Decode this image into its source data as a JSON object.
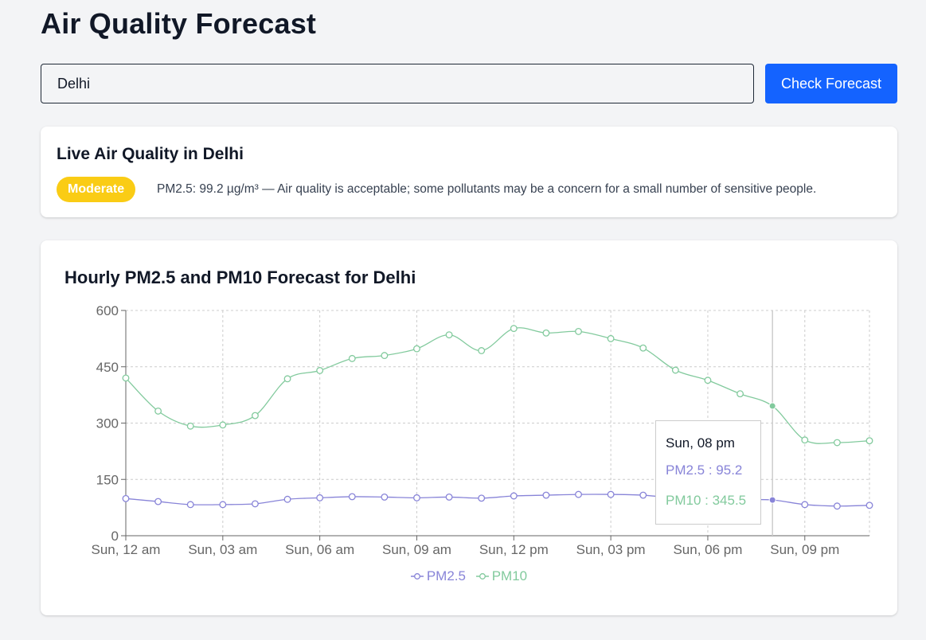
{
  "page": {
    "title": "Air Quality Forecast"
  },
  "search": {
    "value": "Delhi",
    "button_label": "Check Forecast"
  },
  "live": {
    "title": "Live Air Quality in Delhi",
    "badge": "Moderate",
    "badge_color": "#facc15",
    "description": "PM2.5: 99.2 µg/m³ — Air quality is acceptable; some pollutants may be a concern for a small number of sensitive people."
  },
  "chart": {
    "title": "Hourly PM2.5 and PM10 Forecast for Delhi",
    "tooltip": {
      "time": "Sun, 08 pm",
      "pm25": "PM2.5 : 95.2",
      "pm10": "PM10 : 345.5"
    },
    "legend": {
      "pm25": "PM2.5",
      "pm10": "PM10"
    }
  },
  "chart_data": {
    "type": "line",
    "x": [
      "Sun, 12 am",
      "Sun, 01 am",
      "Sun, 02 am",
      "Sun, 03 am",
      "Sun, 04 am",
      "Sun, 05 am",
      "Sun, 06 am",
      "Sun, 07 am",
      "Sun, 08 am",
      "Sun, 09 am",
      "Sun, 10 am",
      "Sun, 11 am",
      "Sun, 12 pm",
      "Sun, 01 pm",
      "Sun, 02 pm",
      "Sun, 03 pm",
      "Sun, 04 pm",
      "Sun, 05 pm",
      "Sun, 06 pm",
      "Sun, 07 pm",
      "Sun, 08 pm",
      "Sun, 09 pm",
      "Sun, 10 pm",
      "Sun, 11 pm"
    ],
    "x_ticks": [
      "Sun, 12 am",
      "Sun, 03 am",
      "Sun, 06 am",
      "Sun, 09 am",
      "Sun, 12 pm",
      "Sun, 03 pm",
      "Sun, 06 pm",
      "Sun, 09 pm"
    ],
    "y_ticks": [
      0,
      150,
      300,
      450,
      600
    ],
    "ylim": [
      0,
      600
    ],
    "grid": true,
    "active_index": 20,
    "series": [
      {
        "name": "PM2.5",
        "color": "#8884d8",
        "values": [
          99,
          91,
          83,
          83,
          85,
          97,
          101,
          104,
          103,
          101,
          103,
          100,
          106,
          108,
          110,
          110,
          108,
          100,
          96,
          96,
          95.2,
          83,
          79,
          81
        ]
      },
      {
        "name": "PM10",
        "color": "#82ca9d",
        "values": [
          420,
          332,
          292,
          295,
          320,
          418,
          440,
          472,
          480,
          498,
          535,
          493,
          552,
          540,
          544,
          525,
          500,
          441,
          414,
          378,
          345.5,
          255,
          248,
          253
        ]
      }
    ]
  }
}
